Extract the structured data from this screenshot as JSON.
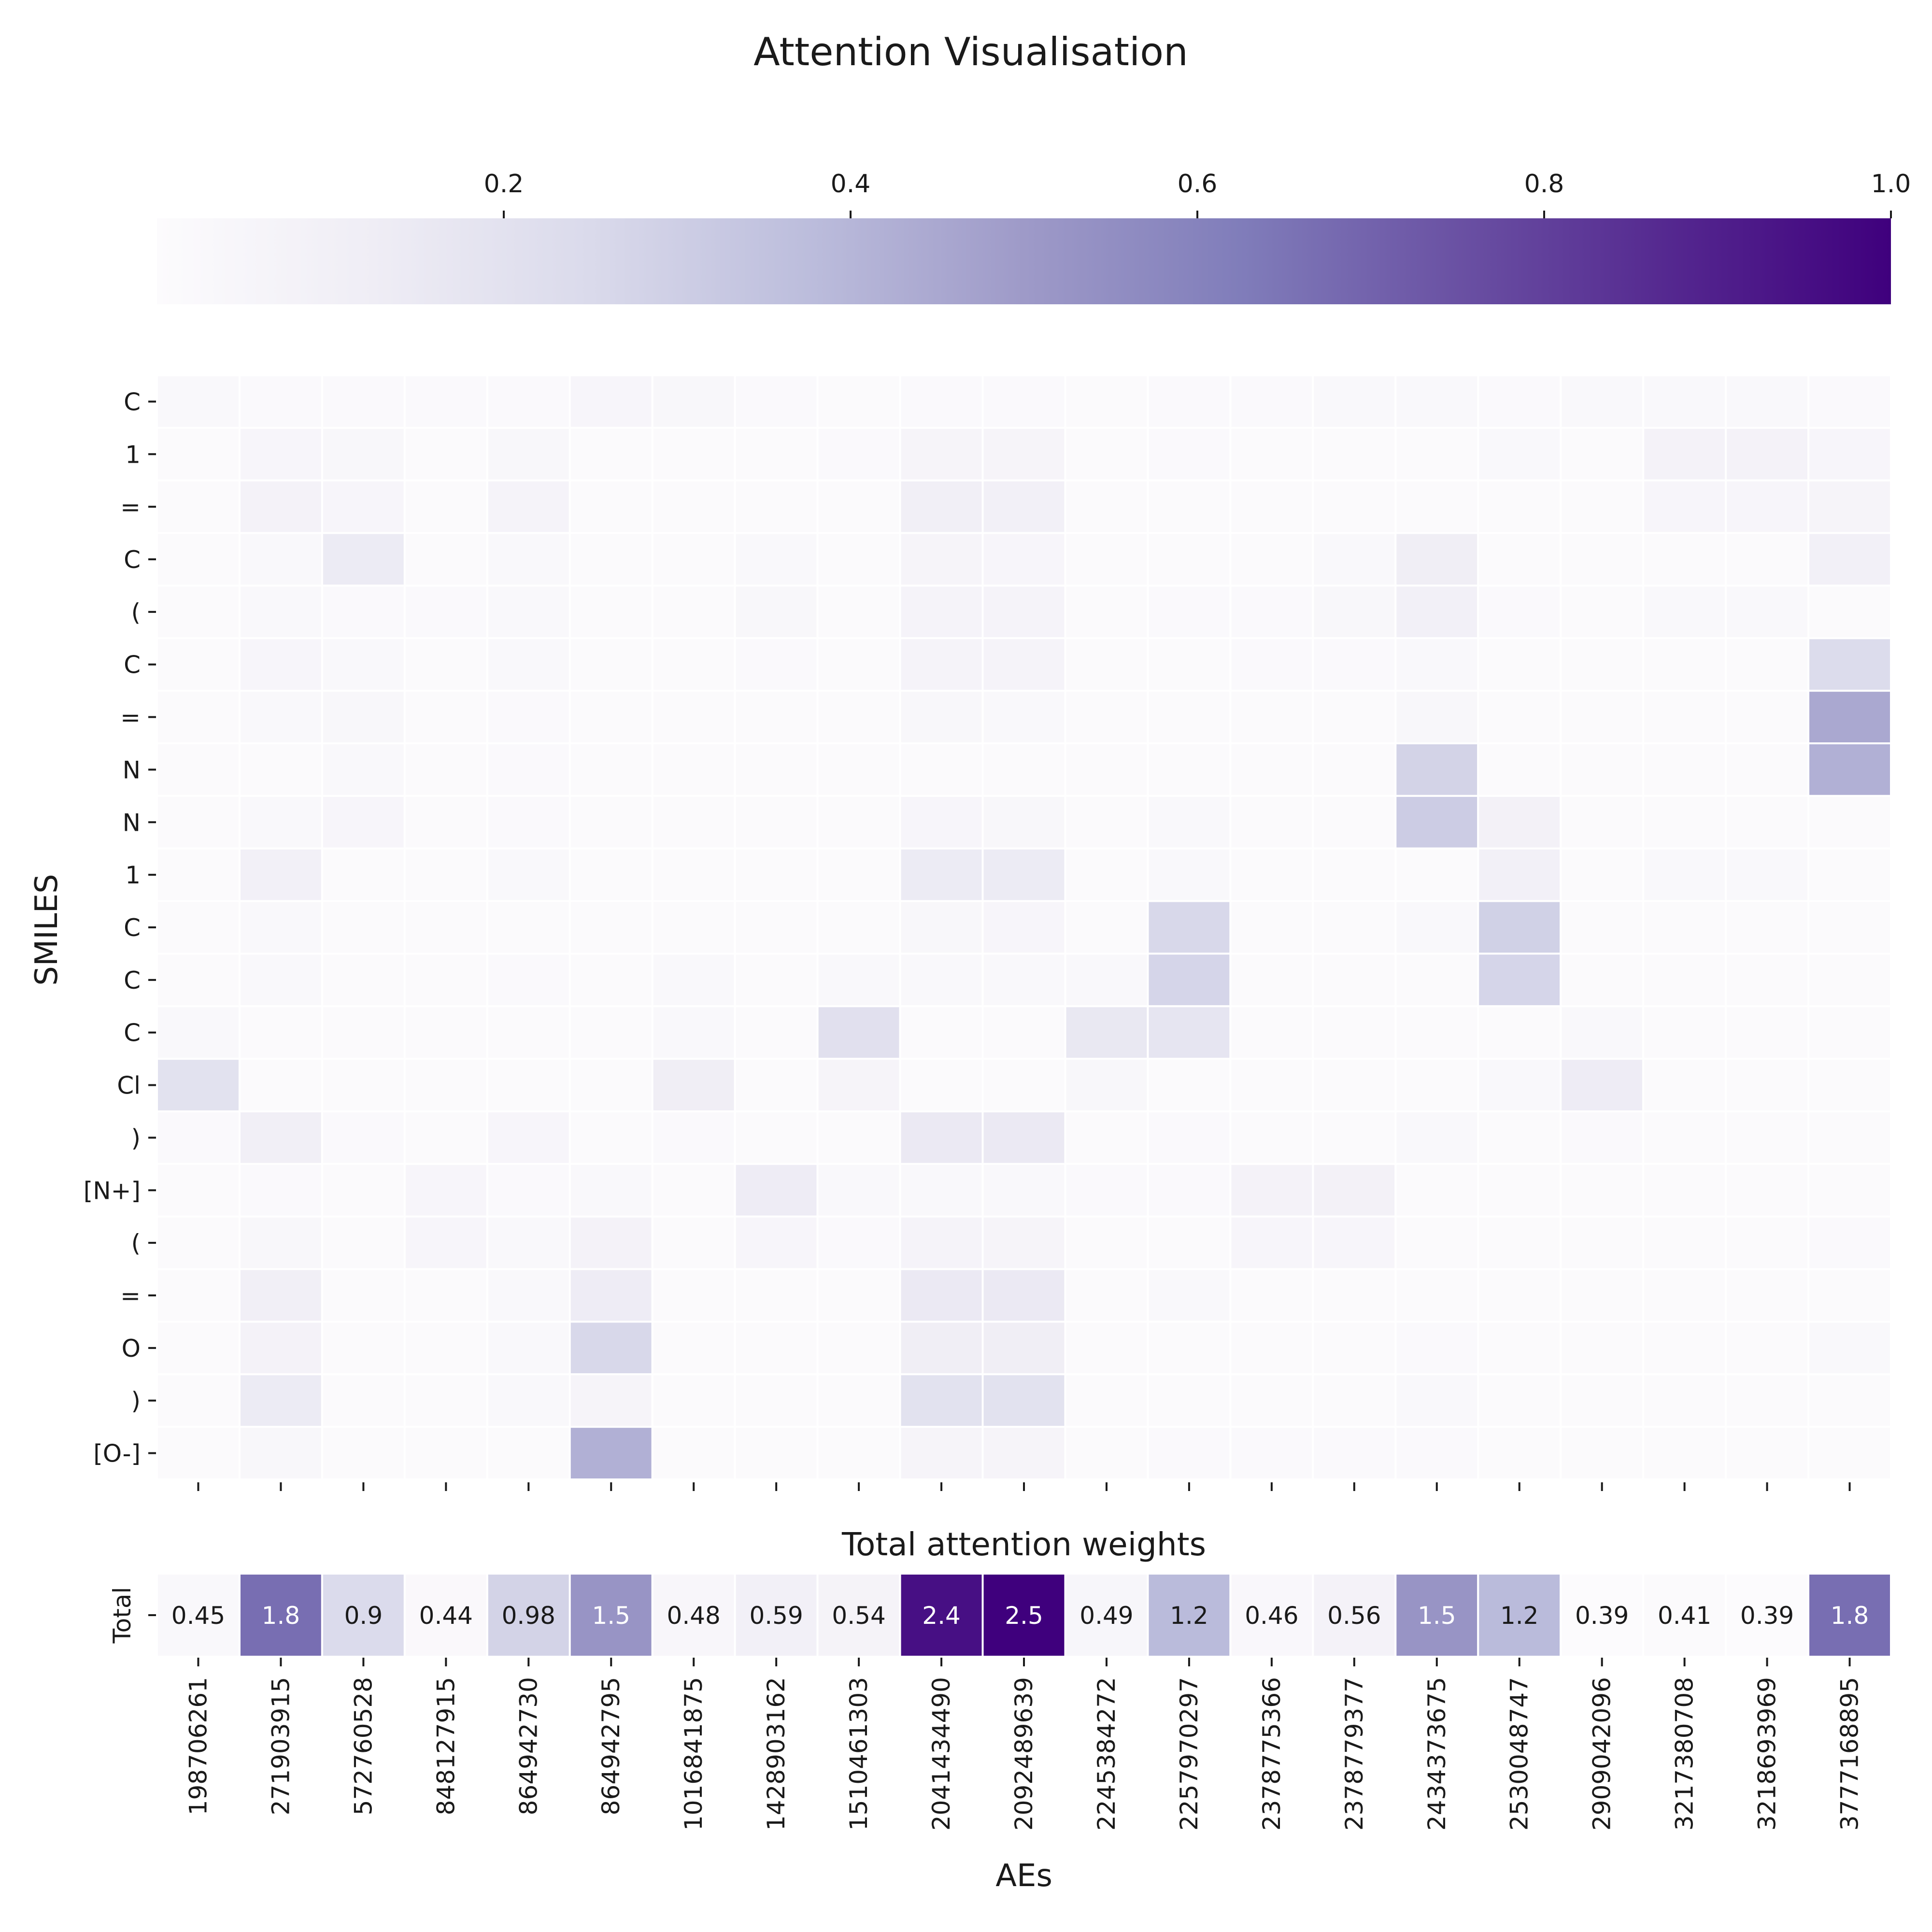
{
  "chart_data": [
    {
      "type": "heatmap",
      "title": "Attention Visualisation",
      "ylabel": "SMILES",
      "xlabel": "",
      "colormap": "Purples",
      "color_low": "#fcfbfd",
      "color_high": "#3f007d",
      "colorbar": {
        "placement": "top",
        "ticks": [
          "0.2",
          "0.4",
          "0.6",
          "0.8",
          "1.0"
        ],
        "tick_values": [
          0.2,
          0.4,
          0.6,
          0.8,
          1.0
        ],
        "range": [
          0.0,
          1.0
        ]
      },
      "y_categories": [
        "C",
        "1",
        "=",
        "C",
        "(",
        "C",
        "=",
        "N",
        "N",
        "1",
        "C",
        "C",
        "C",
        "Cl",
        ")",
        "[N+]",
        "(",
        "=",
        "O",
        ")",
        "[O-]"
      ],
      "x_categories": [
        "198706261",
        "271903915",
        "572760528",
        "848127915",
        "864942730",
        "864942795",
        "1016841875",
        "1428903162",
        "1510461303",
        "2041434490",
        "2092489639",
        "2245384272",
        "2257970297",
        "2378775366",
        "2378779377",
        "2434373675",
        "2530048747",
        "2909042096",
        "3217380708",
        "3218693969",
        "3777168895"
      ],
      "values": [
        [
          0.03,
          0.02,
          0.02,
          0.02,
          0.02,
          0.05,
          0.04,
          0.02,
          0.01,
          0.02,
          0.02,
          0.01,
          0.02,
          0.02,
          0.03,
          0.03,
          0.02,
          0.03,
          0.03,
          0.03,
          0.02
        ],
        [
          0.01,
          0.05,
          0.04,
          0.01,
          0.04,
          0.01,
          0.01,
          0.01,
          0.02,
          0.06,
          0.06,
          0.01,
          0.02,
          0.01,
          0.01,
          0.01,
          0.03,
          0.01,
          0.08,
          0.08,
          0.05
        ],
        [
          0.01,
          0.08,
          0.05,
          0.01,
          0.07,
          0.01,
          0.01,
          0.01,
          0.01,
          0.11,
          0.1,
          0.01,
          0.01,
          0.01,
          0.01,
          0.01,
          0.01,
          0.01,
          0.05,
          0.05,
          0.06
        ],
        [
          0.01,
          0.03,
          0.14,
          0.01,
          0.03,
          0.01,
          0.01,
          0.03,
          0.01,
          0.06,
          0.05,
          0.01,
          0.01,
          0.01,
          0.03,
          0.12,
          0.01,
          0.01,
          0.01,
          0.01,
          0.1
        ],
        [
          0.01,
          0.03,
          0.02,
          0.02,
          0.03,
          0.01,
          0.01,
          0.04,
          0.01,
          0.07,
          0.07,
          0.01,
          0.02,
          0.02,
          0.04,
          0.1,
          0.02,
          0.01,
          0.03,
          0.03,
          0.01
        ],
        [
          0.01,
          0.05,
          0.03,
          0.01,
          0.03,
          0.01,
          0.01,
          0.02,
          0.01,
          0.07,
          0.07,
          0.01,
          0.01,
          0.02,
          0.02,
          0.03,
          0.01,
          0.01,
          0.01,
          0.01,
          0.24
        ],
        [
          0.01,
          0.03,
          0.04,
          0.01,
          0.02,
          0.01,
          0.01,
          0.01,
          0.01,
          0.04,
          0.03,
          0.01,
          0.01,
          0.01,
          0.01,
          0.04,
          0.01,
          0.01,
          0.01,
          0.01,
          0.45
        ],
        [
          0.01,
          0.01,
          0.03,
          0.01,
          0.02,
          0.01,
          0.01,
          0.01,
          0.01,
          0.01,
          0.01,
          0.01,
          0.01,
          0.01,
          0.01,
          0.28,
          0.01,
          0.01,
          0.01,
          0.01,
          0.42
        ],
        [
          0.01,
          0.03,
          0.05,
          0.01,
          0.02,
          0.01,
          0.01,
          0.01,
          0.01,
          0.05,
          0.04,
          0.01,
          0.03,
          0.01,
          0.01,
          0.31,
          0.09,
          0.01,
          0.01,
          0.01,
          0.01
        ],
        [
          0.01,
          0.1,
          0.01,
          0.01,
          0.03,
          0.01,
          0.01,
          0.01,
          0.01,
          0.14,
          0.14,
          0.01,
          0.03,
          0.01,
          0.01,
          0.01,
          0.1,
          0.01,
          0.03,
          0.03,
          0.01
        ],
        [
          0.01,
          0.03,
          0.01,
          0.01,
          0.01,
          0.01,
          0.01,
          0.01,
          0.01,
          0.04,
          0.05,
          0.01,
          0.26,
          0.01,
          0.01,
          0.03,
          0.29,
          0.01,
          0.01,
          0.01,
          0.01
        ],
        [
          0.01,
          0.03,
          0.01,
          0.01,
          0.02,
          0.01,
          0.03,
          0.01,
          0.03,
          0.03,
          0.03,
          0.03,
          0.27,
          0.01,
          0.01,
          0.01,
          0.27,
          0.01,
          0.01,
          0.01,
          0.01
        ],
        [
          0.03,
          0.01,
          0.01,
          0.01,
          0.01,
          0.01,
          0.03,
          0.01,
          0.21,
          0.01,
          0.01,
          0.16,
          0.18,
          0.01,
          0.01,
          0.01,
          0.01,
          0.03,
          0.01,
          0.01,
          0.01
        ],
        [
          0.2,
          0.01,
          0.01,
          0.01,
          0.01,
          0.01,
          0.12,
          0.01,
          0.06,
          0.01,
          0.01,
          0.04,
          0.01,
          0.01,
          0.01,
          0.01,
          0.03,
          0.13,
          0.01,
          0.01,
          0.01
        ],
        [
          0.02,
          0.11,
          0.02,
          0.01,
          0.05,
          0.01,
          0.02,
          0.01,
          0.01,
          0.15,
          0.15,
          0.01,
          0.02,
          0.01,
          0.01,
          0.03,
          0.01,
          0.02,
          0.01,
          0.01,
          0.01
        ],
        [
          0.01,
          0.02,
          0.01,
          0.05,
          0.02,
          0.03,
          0.01,
          0.13,
          0.03,
          0.03,
          0.03,
          0.02,
          0.02,
          0.08,
          0.09,
          0.01,
          0.01,
          0.01,
          0.01,
          0.01,
          0.01
        ],
        [
          0.01,
          0.04,
          0.01,
          0.05,
          0.03,
          0.08,
          0.01,
          0.05,
          0.02,
          0.07,
          0.06,
          0.01,
          0.01,
          0.05,
          0.05,
          0.01,
          0.01,
          0.01,
          0.01,
          0.01,
          0.02
        ],
        [
          0.01,
          0.11,
          0.01,
          0.01,
          0.03,
          0.13,
          0.01,
          0.01,
          0.01,
          0.15,
          0.15,
          0.01,
          0.03,
          0.01,
          0.01,
          0.01,
          0.01,
          0.01,
          0.01,
          0.01,
          0.01
        ],
        [
          0.01,
          0.08,
          0.01,
          0.01,
          0.03,
          0.26,
          0.01,
          0.01,
          0.01,
          0.12,
          0.12,
          0.01,
          0.01,
          0.01,
          0.01,
          0.02,
          0.01,
          0.01,
          0.01,
          0.01,
          0.03
        ],
        [
          0.01,
          0.14,
          0.01,
          0.01,
          0.03,
          0.06,
          0.01,
          0.01,
          0.01,
          0.2,
          0.2,
          0.01,
          0.01,
          0.01,
          0.01,
          0.03,
          0.01,
          0.01,
          0.01,
          0.01,
          0.01
        ],
        [
          0.01,
          0.04,
          0.01,
          0.01,
          0.01,
          0.42,
          0.01,
          0.01,
          0.01,
          0.06,
          0.06,
          0.01,
          0.02,
          0.02,
          0.02,
          0.02,
          0.01,
          0.01,
          0.01,
          0.01,
          0.01
        ]
      ]
    },
    {
      "type": "heatmap",
      "title": "Total attention weights",
      "xlabel": "AEs",
      "ylabel": "",
      "y_categories": [
        "Total"
      ],
      "x_categories": [
        "198706261",
        "271903915",
        "572760528",
        "848127915",
        "864942730",
        "864942795",
        "1016841875",
        "1428903162",
        "1510461303",
        "2041434490",
        "2092489639",
        "2245384272",
        "2257970297",
        "2378775366",
        "2378779377",
        "2434373675",
        "2530048747",
        "2909042096",
        "3217380708",
        "3218693969",
        "3777168895"
      ],
      "values": [
        0.45,
        1.8,
        0.9,
        0.44,
        0.98,
        1.5,
        0.48,
        0.59,
        0.54,
        2.4,
        2.5,
        0.49,
        1.2,
        0.46,
        0.56,
        1.5,
        1.2,
        0.39,
        0.41,
        0.39,
        1.8
      ],
      "labels": [
        "0.45",
        "1.8",
        "0.9",
        "0.44",
        "0.98",
        "1.5",
        "0.48",
        "0.59",
        "0.54",
        "2.4",
        "2.5",
        "0.49",
        "1.2",
        "0.46",
        "0.56",
        "1.5",
        "1.2",
        "0.39",
        "0.41",
        "0.39",
        "1.8"
      ],
      "vmin": 0.39,
      "vmax": 2.5
    }
  ]
}
